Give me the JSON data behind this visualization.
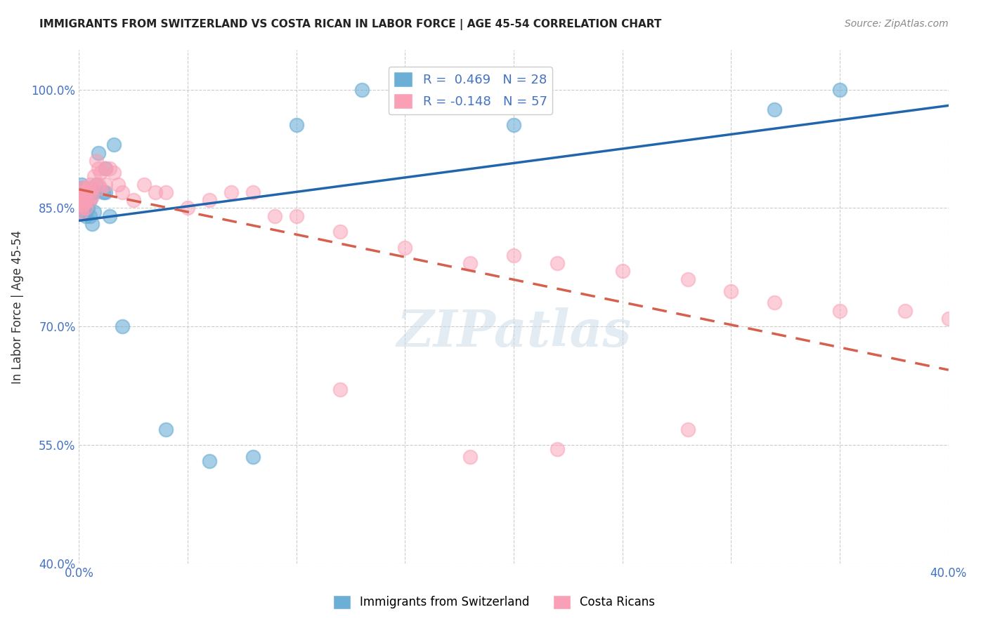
{
  "title": "IMMIGRANTS FROM SWITZERLAND VS COSTA RICAN IN LABOR FORCE | AGE 45-54 CORRELATION CHART",
  "source": "Source: ZipAtlas.com",
  "xlabel": "",
  "ylabel": "In Labor Force | Age 45-54",
  "xlim": [
    0.0,
    0.4
  ],
  "ylim": [
    0.4,
    1.05
  ],
  "xticks": [
    0.0,
    0.05,
    0.1,
    0.15,
    0.2,
    0.25,
    0.3,
    0.35,
    0.4
  ],
  "xticklabels": [
    "0.0%",
    "",
    "",
    "",
    "",
    "",
    "",
    "",
    "40.0%"
  ],
  "yticks": [
    0.4,
    0.55,
    0.7,
    0.85,
    1.0
  ],
  "yticklabels": [
    "40.0%",
    "55.0%",
    "70.0%",
    "85.0%",
    "100.0%"
  ],
  "legend_r1": "R =  0.469   N = 28",
  "legend_r2": "R = -0.148   N = 57",
  "blue_color": "#6baed6",
  "pink_color": "#fa9fb5",
  "blue_line_color": "#2166ac",
  "pink_line_color": "#d6604d",
  "swiss_x": [
    0.001,
    0.001,
    0.001,
    0.001,
    0.001,
    0.001,
    0.002,
    0.002,
    0.002,
    0.003,
    0.003,
    0.004,
    0.004,
    0.005,
    0.005,
    0.006,
    0.007,
    0.007,
    0.008,
    0.009,
    0.011,
    0.012,
    0.012,
    0.014,
    0.016,
    0.2,
    0.32,
    0.35
  ],
  "swiss_y": [
    0.87,
    0.87,
    0.875,
    0.88,
    0.865,
    0.86,
    0.86,
    0.875,
    0.85,
    0.845,
    0.84,
    0.85,
    0.865,
    0.84,
    0.86,
    0.83,
    0.845,
    0.87,
    0.88,
    0.92,
    0.87,
    0.87,
    0.9,
    0.84,
    0.93,
    0.955,
    0.975,
    1.0
  ],
  "swiss_special": [
    [
      0.02,
      0.7
    ],
    [
      0.04,
      0.57
    ],
    [
      0.06,
      0.53
    ],
    [
      0.08,
      0.535
    ],
    [
      0.1,
      0.955
    ],
    [
      0.13,
      1.0
    ]
  ],
  "cr_x": [
    0.001,
    0.001,
    0.001,
    0.001,
    0.001,
    0.001,
    0.001,
    0.002,
    0.002,
    0.002,
    0.003,
    0.003,
    0.003,
    0.004,
    0.004,
    0.005,
    0.005,
    0.006,
    0.006,
    0.007,
    0.008,
    0.009,
    0.009,
    0.01,
    0.01,
    0.012,
    0.012,
    0.014,
    0.016,
    0.018,
    0.02,
    0.025,
    0.03,
    0.035,
    0.04,
    0.05,
    0.06,
    0.07,
    0.08,
    0.09,
    0.1,
    0.12,
    0.15,
    0.18,
    0.2,
    0.22,
    0.25,
    0.28,
    0.3,
    0.32,
    0.35,
    0.38,
    0.4,
    0.28,
    0.22,
    0.18,
    0.12
  ],
  "cr_y": [
    0.87,
    0.875,
    0.865,
    0.86,
    0.855,
    0.85,
    0.845,
    0.875,
    0.865,
    0.855,
    0.87,
    0.86,
    0.85,
    0.875,
    0.865,
    0.88,
    0.86,
    0.875,
    0.865,
    0.89,
    0.91,
    0.9,
    0.88,
    0.895,
    0.875,
    0.9,
    0.88,
    0.9,
    0.895,
    0.88,
    0.87,
    0.86,
    0.88,
    0.87,
    0.87,
    0.85,
    0.86,
    0.87,
    0.87,
    0.84,
    0.84,
    0.82,
    0.8,
    0.78,
    0.79,
    0.78,
    0.77,
    0.76,
    0.745,
    0.73,
    0.72,
    0.72,
    0.71,
    0.57,
    0.545,
    0.535,
    0.62
  ],
  "watermark": "ZIPatlas",
  "background_color": "#ffffff",
  "grid_color": "#cccccc"
}
